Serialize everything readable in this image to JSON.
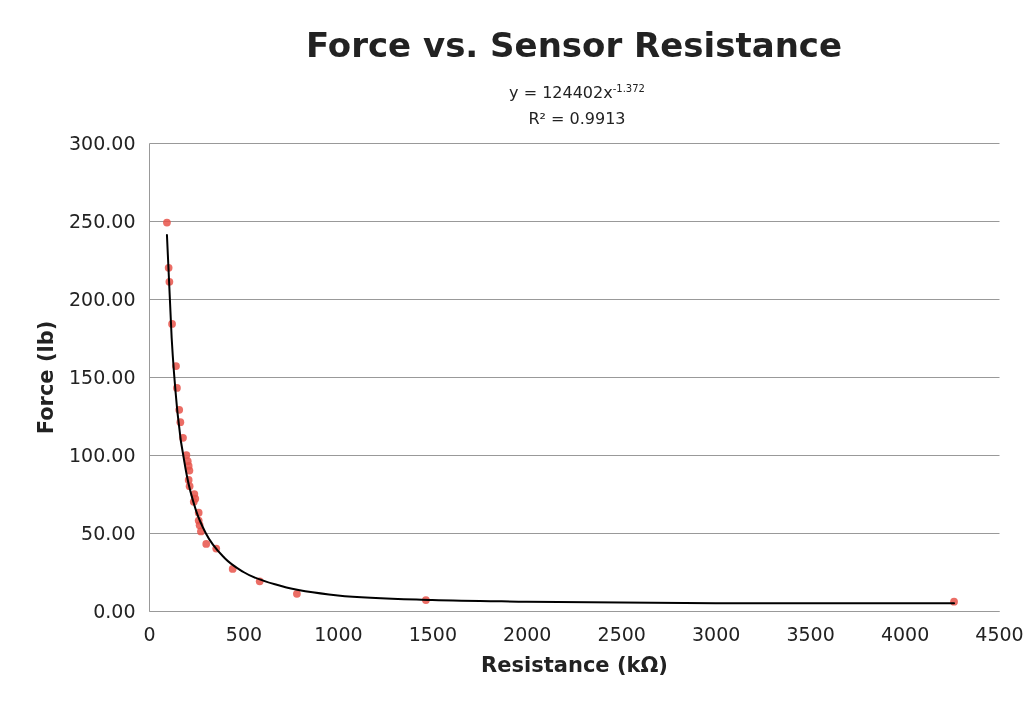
{
  "chart_data": {
    "type": "scatter",
    "title": "Force vs. Sensor Resistance",
    "annotations": [
      "y = 124402x$^{-1.372}$",
      "R² = 0.9913"
    ],
    "xlabel": "Resistance (kΩ)",
    "ylabel": "Force (lb)",
    "xlim": [
      0,
      4500
    ],
    "xticks": [
      0,
      500,
      1000,
      1500,
      2000,
      2500,
      3000,
      3500,
      4000,
      4500
    ],
    "ylim": [
      0,
      300
    ],
    "yticks": [
      {
        "value": 0,
        "label": "0.00"
      },
      {
        "value": 50,
        "label": "50.00"
      },
      {
        "value": 100,
        "label": "100.00"
      },
      {
        "value": 150,
        "label": "150.00"
      },
      {
        "value": 200,
        "label": "200.00"
      },
      {
        "value": 250,
        "label": "250.00"
      },
      {
        "value": 300,
        "label": "300.00"
      }
    ],
    "grid": "y",
    "series": [
      {
        "marker": "circle",
        "color": "#e8534a",
        "x": [
          95,
          104,
          108,
          122,
          143,
          148,
          160,
          166,
          180,
          198,
          205,
          210,
          214,
          210,
          215,
          240,
          245,
          237,
          263,
          263,
          268,
          275,
          303,
          356,
          443,
          586,
          783,
          1466,
          4262
        ],
        "values": [
          249,
          220,
          211,
          184,
          157,
          143,
          129,
          121,
          111,
          100,
          96,
          93,
          90,
          84,
          80,
          75,
          72,
          70,
          63,
          58,
          55,
          51,
          43,
          40,
          27,
          19,
          11,
          7,
          6
        ]
      },
      {
        "type": "line",
        "marker": "none",
        "color": "#000000",
        "line_style": "solid",
        "x": [
          95,
          120,
          150,
          200,
          250,
          300,
          400,
          500,
          700,
          1000,
          1500,
          2000,
          3000,
          4262
        ],
        "values": [
          241,
          175,
          128,
          87,
          64,
          50,
          34,
          25,
          16,
          10,
          7,
          6,
          5,
          5
        ]
      }
    ]
  }
}
